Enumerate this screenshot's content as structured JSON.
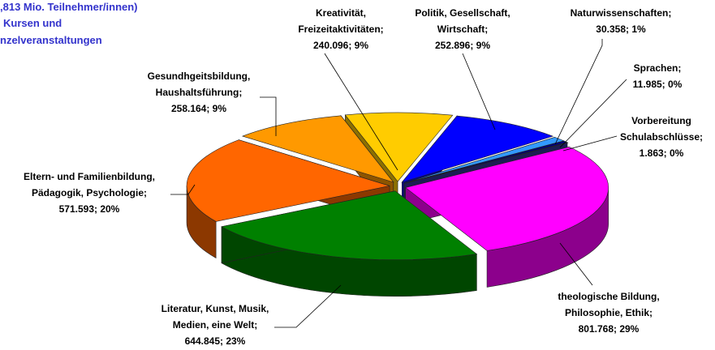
{
  "chart_data": {
    "type": "pie3d",
    "title": [
      ",813 Mio. Teilnehmer/innen)",
      "Kursen und",
      "nzelveranstaltungen"
    ],
    "categories": [
      "Kreativität,\nFreizeitaktivitäten;",
      "Politik, Gesellschaft,\nWirtschaft;",
      "Naturwissenschaften;",
      "Sprachen;",
      "Vorbereitung\nSchulabschlüsse;",
      "theologische Bildung,\nPhilosophie, Ethik;",
      "Literatur, Kunst, Musik,\nMedien, eine Welt;",
      "Eltern- und Familienbildung,\nPädagogik, Psychologie;",
      "Gesundhgeitsbildung,\nHaushaltsführung;"
    ],
    "values": [
      240096,
      252896,
      30358,
      11985,
      1863,
      801768,
      644845,
      571593,
      258164
    ],
    "value_labels": [
      "240.096; 9%",
      "252.896; 9%",
      "30.358; 1%",
      "11.985; 0%",
      "1.863; 0%",
      "801.768; 29%",
      "644.845; 23%",
      "571.593; 20%",
      "258.164; 9%"
    ],
    "colors": [
      "#ffcc00",
      "#0000ff",
      "#3399ff",
      "#000080",
      "#333399",
      "#ff00ff",
      "#008000",
      "#ff6600",
      "#ff9900"
    ]
  }
}
